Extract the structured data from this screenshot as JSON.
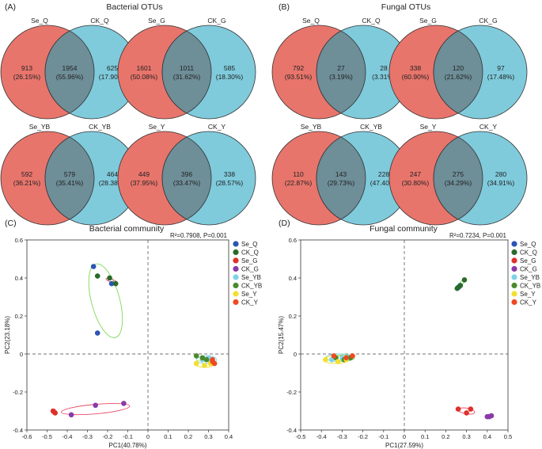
{
  "panels": [
    {
      "id": "A",
      "label": "(A)",
      "title": "Bacterial OTUs"
    },
    {
      "id": "B",
      "label": "(B)",
      "title": "Fungal OTUs"
    },
    {
      "id": "C",
      "label": "(C)",
      "title": "Bacterial community"
    },
    {
      "id": "D",
      "label": "(D)",
      "title": "Fungal community"
    }
  ],
  "colors": {
    "left_circle": "#e8756c",
    "right_circle": "#7fcbdc",
    "overlap": "#6e8e98",
    "outline": "#333333"
  },
  "chart_data": [
    {
      "type": "venn",
      "panel": "A",
      "title": "Bacterial OTUs",
      "diagrams": [
        {
          "left": "Se_Q",
          "right": "CK_Q",
          "left_only": "913",
          "left_only_pct": "(26.15%)",
          "shared": "1954",
          "shared_pct": "(55.96%)",
          "right_only": "625",
          "right_only_pct": "(17.90%)"
        },
        {
          "left": "Se_G",
          "right": "CK_G",
          "left_only": "1601",
          "left_only_pct": "(50.08%)",
          "shared": "1011",
          "shared_pct": "(31.62%)",
          "right_only": "585",
          "right_only_pct": "(18.30%)"
        },
        {
          "left": "Se_YB",
          "right": "CK_YB",
          "left_only": "592",
          "left_only_pct": "(36.21%)",
          "shared": "579",
          "shared_pct": "(35.41%)",
          "right_only": "464",
          "right_only_pct": "(28.38%)"
        },
        {
          "left": "Se_Y",
          "right": "CK_Y",
          "left_only": "449",
          "left_only_pct": "(37.95%)",
          "shared": "396",
          "shared_pct": "(33.47%)",
          "right_only": "338",
          "right_only_pct": "(28.57%)"
        }
      ]
    },
    {
      "type": "venn",
      "panel": "B",
      "title": "Fungal OTUs",
      "diagrams": [
        {
          "left": "Se_Q",
          "right": "CK_Q",
          "left_only": "792",
          "left_only_pct": "(93.51%)",
          "shared": "27",
          "shared_pct": "(3.19%)",
          "right_only": "28",
          "right_only_pct": "(3.31%)"
        },
        {
          "left": "Se_G",
          "right": "CK_G",
          "left_only": "338",
          "left_only_pct": "(60.90%)",
          "shared": "120",
          "shared_pct": "(21.62%)",
          "right_only": "97",
          "right_only_pct": "(17.48%)"
        },
        {
          "left": "Se_YB",
          "right": "CK_YB",
          "left_only": "110",
          "left_only_pct": "(22.87%)",
          "shared": "143",
          "shared_pct": "(29.73%)",
          "right_only": "228",
          "right_only_pct": "(47.40%)"
        },
        {
          "left": "Se_Y",
          "right": "CK_Y",
          "left_only": "247",
          "left_only_pct": "(30.80%)",
          "shared": "275",
          "shared_pct": "(34.29%)",
          "right_only": "280",
          "right_only_pct": "(34.91%)"
        }
      ]
    },
    {
      "type": "scatter",
      "panel": "C",
      "title": "Bacterial community",
      "stat": "R²=0.7908, P=0.001",
      "xlabel": "PC1(40.78%)",
      "ylabel": "PC2(23.18%)",
      "xlim": [
        -0.6,
        0.4
      ],
      "ylim": [
        -0.4,
        0.6
      ],
      "xticks": [
        "-0.6",
        "-0.5",
        "-0.4",
        "-0.3",
        "-0.2",
        "-0.1",
        "0",
        "0.1",
        "0.2",
        "0.3",
        "0.4"
      ],
      "yticks": [
        "-0.4",
        "-0.2",
        "0",
        "0.2",
        "0.4",
        "0.6"
      ],
      "series": [
        {
          "name": "Se_Q",
          "color": "#2a55b4",
          "points": [
            [
              -0.27,
              0.46
            ],
            [
              -0.18,
              0.37
            ],
            [
              -0.25,
              0.11
            ]
          ]
        },
        {
          "name": "CK_Q",
          "color": "#2a6a2a",
          "points": [
            [
              -0.25,
              0.41
            ],
            [
              -0.19,
              0.4
            ],
            [
              -0.16,
              0.37
            ]
          ]
        },
        {
          "name": "Se_G",
          "color": "#e0302a",
          "points": [
            [
              -0.47,
              -0.3
            ],
            [
              -0.46,
              -0.31
            ],
            [
              -0.465,
              -0.305
            ]
          ]
        },
        {
          "name": "CK_G",
          "color": "#8a3aa8",
          "points": [
            [
              -0.38,
              -0.32
            ],
            [
              -0.26,
              -0.27
            ],
            [
              -0.12,
              -0.26
            ]
          ]
        },
        {
          "name": "Se_YB",
          "color": "#7fd3e6",
          "points": [
            [
              0.27,
              -0.03
            ],
            [
              0.3,
              -0.02
            ],
            [
              0.31,
              -0.04
            ]
          ]
        },
        {
          "name": "CK_YB",
          "color": "#4a8a2a",
          "points": [
            [
              0.24,
              -0.01
            ],
            [
              0.27,
              -0.02
            ],
            [
              0.29,
              -0.03
            ]
          ]
        },
        {
          "name": "Se_Y",
          "color": "#f2e030",
          "points": [
            [
              0.24,
              -0.05
            ],
            [
              0.28,
              -0.06
            ],
            [
              0.31,
              -0.05
            ]
          ]
        },
        {
          "name": "CK_Y",
          "color": "#ee4a22",
          "points": [
            [
              0.32,
              -0.04
            ],
            [
              0.33,
              -0.05
            ],
            [
              0.32,
              -0.03
            ]
          ]
        }
      ],
      "ellipses": [
        {
          "group": "CK_Q",
          "color": "#7ed957",
          "center": [
            -0.21,
            0.28
          ],
          "rx": 0.07,
          "ry": 0.2,
          "angle": 15
        },
        {
          "group": "Se_Q",
          "color": "#e84c6a",
          "center": [
            -0.18,
            0.385
          ],
          "rx": 0.03,
          "ry": 0.008,
          "angle": -20
        },
        {
          "group": "CK_G",
          "color": "#e84c6a",
          "center": [
            -0.26,
            -0.29
          ],
          "rx": 0.17,
          "ry": 0.025,
          "angle": 5
        },
        {
          "group": "Se_YB",
          "color": "#7fd3e6",
          "center": [
            0.29,
            -0.03
          ],
          "rx": 0.05,
          "ry": 0.02,
          "angle": 0
        },
        {
          "group": "Se_Y",
          "color": "#f2e030",
          "center": [
            0.28,
            -0.05
          ],
          "rx": 0.05,
          "ry": 0.02,
          "angle": 0
        }
      ],
      "legend": "right"
    },
    {
      "type": "scatter",
      "panel": "D",
      "title": "Fungal community",
      "stat": "R²=0.7234, P=0.001",
      "xlabel": "PC1(27.59%)",
      "ylabel": "PC2(15.47%)",
      "xlim": [
        -0.5,
        0.5
      ],
      "ylim": [
        -0.4,
        0.6
      ],
      "xticks": [
        "-0.5",
        "-0.4",
        "-0.3",
        "-0.2",
        "-0.1",
        "0",
        "0.1",
        "0.2",
        "0.3",
        "0.4",
        "0.5"
      ],
      "yticks": [
        "-0.4",
        "-0.2",
        "0",
        "0.2",
        "0.4",
        "0.6"
      ],
      "series": [
        {
          "name": "Se_Q",
          "color": "#2a55b4",
          "points": [
            [
              0.26,
              0.35
            ],
            [
              0.27,
              0.36
            ],
            [
              0.265,
              0.355
            ]
          ]
        },
        {
          "name": "CK_Q",
          "color": "#2a6a2a",
          "points": [
            [
              0.29,
              0.39
            ],
            [
              0.255,
              0.345
            ],
            [
              0.27,
              0.36
            ]
          ]
        },
        {
          "name": "Se_G",
          "color": "#e0302a",
          "points": [
            [
              0.26,
              -0.29
            ],
            [
              0.32,
              -0.29
            ],
            [
              0.3,
              -0.31
            ]
          ]
        },
        {
          "name": "CK_G",
          "color": "#8a3aa8",
          "points": [
            [
              0.4,
              -0.33
            ],
            [
              0.42,
              -0.325
            ],
            [
              0.41,
              -0.33
            ]
          ]
        },
        {
          "name": "Se_YB",
          "color": "#7fd3e6",
          "points": [
            [
              -0.35,
              -0.03
            ],
            [
              -0.3,
              -0.02
            ],
            [
              -0.27,
              -0.02
            ]
          ]
        },
        {
          "name": "CK_YB",
          "color": "#4a8a2a",
          "points": [
            [
              -0.33,
              -0.02
            ],
            [
              -0.29,
              -0.03
            ],
            [
              -0.26,
              -0.02
            ]
          ]
        },
        {
          "name": "Se_Y",
          "color": "#f2e030",
          "points": [
            [
              -0.38,
              -0.03
            ],
            [
              -0.32,
              -0.04
            ],
            [
              -0.28,
              -0.03
            ]
          ]
        },
        {
          "name": "CK_Y",
          "color": "#ee4a22",
          "points": [
            [
              -0.34,
              -0.01
            ],
            [
              -0.28,
              -0.02
            ],
            [
              -0.25,
              -0.01
            ]
          ]
        }
      ],
      "ellipses": [
        {
          "group": "Se_YB",
          "color": "#7fd3e6",
          "center": [
            -0.31,
            -0.02
          ],
          "rx": 0.07,
          "ry": 0.02,
          "angle": 0
        },
        {
          "group": "Se_Y",
          "color": "#f2e030",
          "center": [
            -0.33,
            -0.03
          ],
          "rx": 0.06,
          "ry": 0.02,
          "angle": 0
        },
        {
          "group": "CK_YB",
          "color": "#7ed957",
          "center": [
            -0.29,
            -0.02
          ],
          "rx": 0.05,
          "ry": 0.015,
          "angle": 0
        },
        {
          "group": "Se_G",
          "color": "#e84c6a",
          "center": [
            0.3,
            -0.3
          ],
          "rx": 0.04,
          "ry": 0.015,
          "angle": -10
        },
        {
          "group": "CK_Q",
          "color": "#7ed957",
          "center": [
            0.275,
            0.37
          ],
          "rx": 0.025,
          "ry": 0.008,
          "angle": 55
        }
      ],
      "legend": "right"
    }
  ]
}
